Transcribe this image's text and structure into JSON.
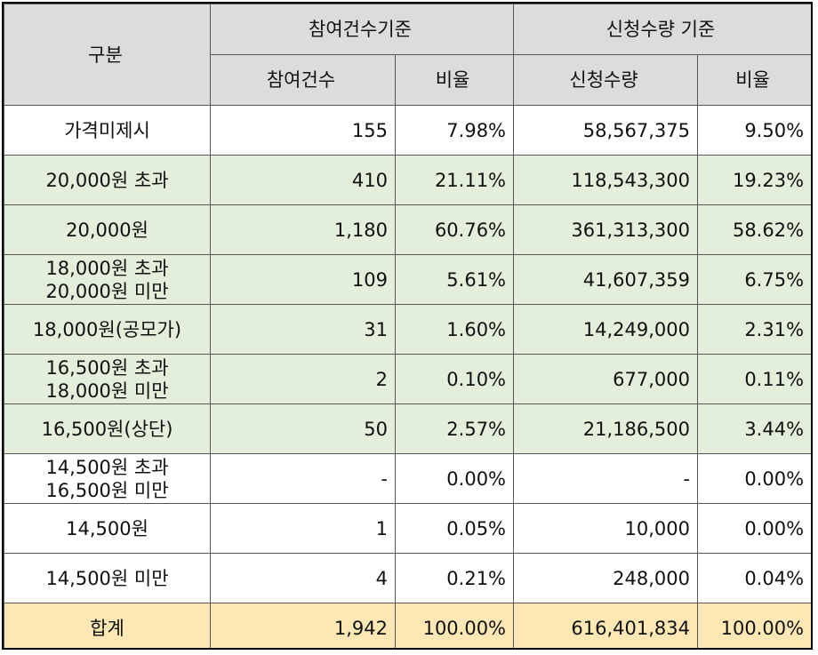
{
  "header": {
    "category": "구분",
    "group_count": "참여건수기준",
    "group_qty": "신청수량 기준",
    "col_count": "참여건수",
    "col_count_ratio": "비율",
    "col_qty": "신청수량",
    "col_qty_ratio": "비율"
  },
  "rows": [
    {
      "label_lines": [
        "가격미제시"
      ],
      "count": "155",
      "count_ratio": "7.98%",
      "qty": "58,567,375",
      "qty_ratio": "9.50%",
      "style": "white"
    },
    {
      "label_lines": [
        "20,000원 초과"
      ],
      "count": "410",
      "count_ratio": "21.11%",
      "qty": "118,543,300",
      "qty_ratio": "19.23%",
      "style": "green"
    },
    {
      "label_lines": [
        "20,000원"
      ],
      "count": "1,180",
      "count_ratio": "60.76%",
      "qty": "361,313,300",
      "qty_ratio": "58.62%",
      "style": "green"
    },
    {
      "label_lines": [
        "18,000원 초과",
        "20,000원 미만"
      ],
      "count": "109",
      "count_ratio": "5.61%",
      "qty": "41,607,359",
      "qty_ratio": "6.75%",
      "style": "green"
    },
    {
      "label_lines": [
        "18,000원(공모가)"
      ],
      "count": "31",
      "count_ratio": "1.60%",
      "qty": "14,249,000",
      "qty_ratio": "2.31%",
      "style": "green"
    },
    {
      "label_lines": [
        "16,500원 초과",
        "18,000원 미만"
      ],
      "count": "2",
      "count_ratio": "0.10%",
      "qty": "677,000",
      "qty_ratio": "0.11%",
      "style": "green"
    },
    {
      "label_lines": [
        "16,500원(상단)"
      ],
      "count": "50",
      "count_ratio": "2.57%",
      "qty": "21,186,500",
      "qty_ratio": "3.44%",
      "style": "green"
    },
    {
      "label_lines": [
        "14,500원 초과",
        "16,500원 미만"
      ],
      "count": "-",
      "count_ratio": "0.00%",
      "qty": "-",
      "qty_ratio": "0.00%",
      "style": "white"
    },
    {
      "label_lines": [
        "14,500원"
      ],
      "count": "1",
      "count_ratio": "0.05%",
      "qty": "10,000",
      "qty_ratio": "0.00%",
      "style": "white"
    },
    {
      "label_lines": [
        "14,500원 미만"
      ],
      "count": "4",
      "count_ratio": "0.21%",
      "qty": "248,000",
      "qty_ratio": "0.04%",
      "style": "white"
    }
  ],
  "total": {
    "label": "합계",
    "count": "1,942",
    "count_ratio": "100.00%",
    "qty": "616,401,834",
    "qty_ratio": "100.00%"
  },
  "colors": {
    "header_bg": "#dcdcdc",
    "green_row_bg": "#e3eedb",
    "total_row_bg": "#fce7b5"
  }
}
